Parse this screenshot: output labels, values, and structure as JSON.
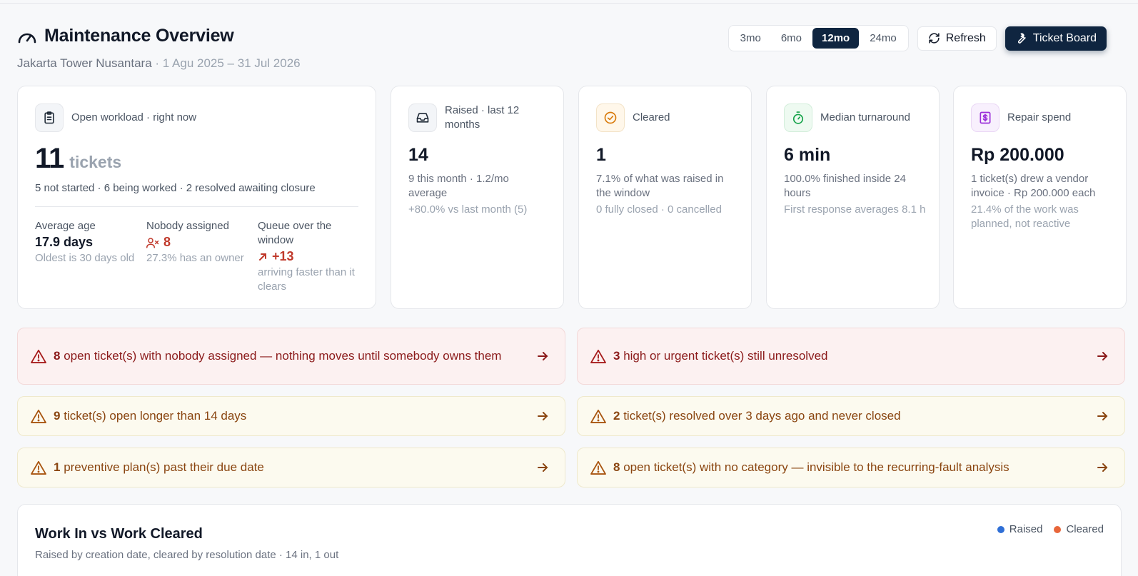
{
  "header": {
    "title": "Maintenance Overview",
    "property": "Jakarta Tower Nusantara",
    "date_range": " · 1 Agu 2025 – 31 Jul 2026"
  },
  "controls": {
    "ranges": [
      "3mo",
      "6mo",
      "12mo",
      "24mo"
    ],
    "active_range": "12mo",
    "refresh_label": "Refresh",
    "ticket_board_label": "Ticket Board"
  },
  "workload": {
    "label": "Open workload · right now",
    "count": "11",
    "unit": "tickets",
    "breakdown": "5 not started · 6 being worked · 2 resolved awaiting closure",
    "stats": [
      {
        "label": "Average age",
        "value": "17.9 days",
        "sub": "Oldest is 30 days old"
      },
      {
        "label": "Nobody assigned",
        "value": "8",
        "sub": "27.3% has an owner"
      },
      {
        "label": "Queue over the window",
        "value": "+13",
        "sub": "arriving faster than it clears"
      }
    ]
  },
  "kpis": [
    {
      "label": "Raised · last 12 months",
      "value": "14",
      "meta": "9 this month · 1.2/mo average",
      "meta2": "+80.0% vs last month (5)",
      "icon": "inbox-icon"
    },
    {
      "label": "Cleared",
      "value": "1",
      "meta": "7.1% of what was raised in the window",
      "meta2": "0 fully closed · 0 cancelled",
      "icon": "check-circle-icon"
    },
    {
      "label": "Median turnaround",
      "value": "6 min",
      "meta": "100.0% finished inside 24 hours",
      "meta2": "First response averages 8.1 h",
      "icon": "stopwatch-icon"
    },
    {
      "label": "Repair spend",
      "value": "Rp 200.000",
      "meta": "1 ticket(s) drew a vendor invoice · Rp 200.000 each",
      "meta2": "21.4% of the work was planned, not reactive",
      "icon": "dollar-receipt-icon"
    }
  ],
  "alerts": [
    {
      "count": "8",
      "text": " open ticket(s) with nobody assigned — nothing moves until somebody owns them",
      "level": "red"
    },
    {
      "count": "3",
      "text": " high or urgent ticket(s) still unresolved",
      "level": "red"
    },
    {
      "count": "9",
      "text": " ticket(s) open longer than 14 days",
      "level": "amber"
    },
    {
      "count": "2",
      "text": " ticket(s) resolved over 3 days ago and never closed",
      "level": "amber"
    },
    {
      "count": "1",
      "text": " preventive plan(s) past their due date",
      "level": "amber"
    },
    {
      "count": "8",
      "text": " open ticket(s) with no category — invisible to the recurring-fault analysis",
      "level": "amber"
    }
  ],
  "chart": {
    "title": "Work In vs Work Cleared",
    "subtitle": "Raised by creation date, cleared by resolution date · 14 in, 1 out",
    "legend": [
      {
        "name": "Raised",
        "color": "#2f6fd6"
      },
      {
        "name": "Cleared",
        "color": "#e8663a"
      }
    ]
  },
  "colors": {
    "primary": "#0f2540",
    "danger": "#c0392b",
    "warning": "#8a4510"
  }
}
